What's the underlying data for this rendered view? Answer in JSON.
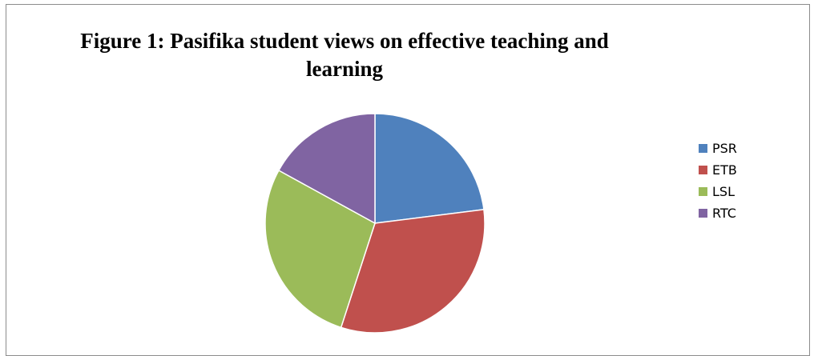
{
  "chart_data": {
    "type": "pie",
    "title": "Figure 1: Pasifika student views on effective teaching and learning",
    "categories": [
      "PSR",
      "ETB",
      "LSL",
      "RTC"
    ],
    "values": [
      23,
      32,
      28,
      17
    ],
    "colors": [
      "#4f81bd",
      "#c0504d",
      "#9bbb59",
      "#8064a2"
    ],
    "legend_position": "right"
  }
}
